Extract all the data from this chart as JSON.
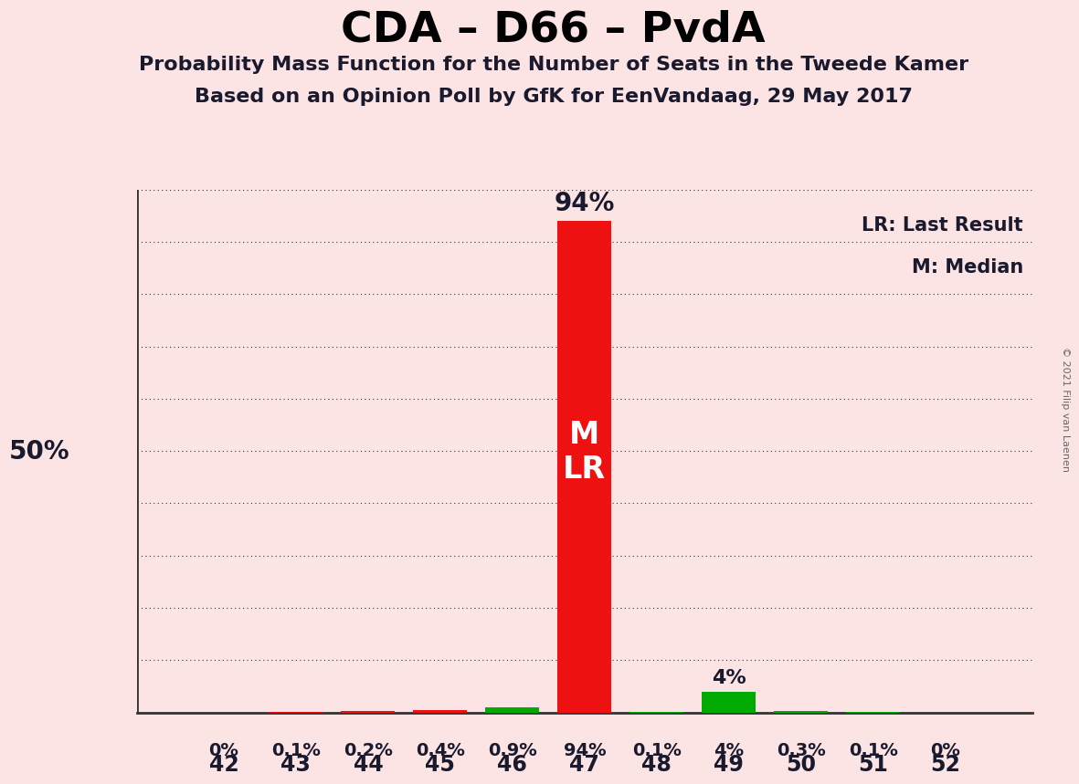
{
  "title": "CDA – D66 – PvdA",
  "subtitle1": "Probability Mass Function for the Number of Seats in the Tweede Kamer",
  "subtitle2": "Based on an Opinion Poll by GfK for EenVandaag, 29 May 2017",
  "copyright": "© 2021 Filip van Laenen",
  "seats": [
    42,
    43,
    44,
    45,
    46,
    47,
    48,
    49,
    50,
    51,
    52
  ],
  "probabilities": [
    0.0,
    0.001,
    0.002,
    0.004,
    0.009,
    0.94,
    0.001,
    0.04,
    0.003,
    0.001,
    0.0
  ],
  "labels": [
    "0%",
    "0.1%",
    "0.2%",
    "0.4%",
    "0.9%",
    "94%",
    "0.1%",
    "4%",
    "0.3%",
    "0.1%",
    "0%"
  ],
  "bar_colors": [
    "#ee1111",
    "#ee1111",
    "#ee1111",
    "#ee1111",
    "#00aa00",
    "#ee1111",
    "#00aa00",
    "#00aa00",
    "#00aa00",
    "#00aa00",
    "#00aa00"
  ],
  "median_seat": 47,
  "last_result_seat": 47,
  "background_color": "#fce4e4",
  "ylabel_50": "50%",
  "legend_lr": "LR: Last Result",
  "legend_m": "M: Median",
  "text_color": "#1a1a2e",
  "bar_label_color": "#1a1a2e"
}
